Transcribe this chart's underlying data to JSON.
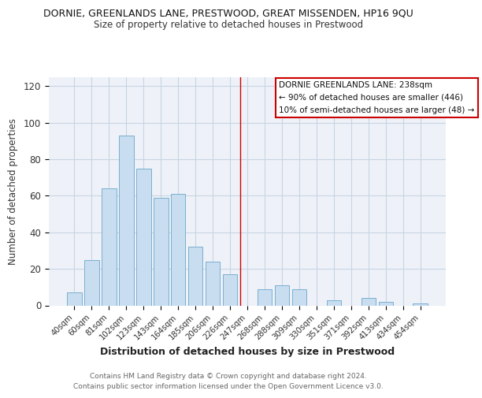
{
  "title": "DORNIE, GREENLANDS LANE, PRESTWOOD, GREAT MISSENDEN, HP16 9QU",
  "subtitle": "Size of property relative to detached houses in Prestwood",
  "xlabel": "Distribution of detached houses by size in Prestwood",
  "ylabel": "Number of detached properties",
  "bar_labels": [
    "40sqm",
    "60sqm",
    "81sqm",
    "102sqm",
    "123sqm",
    "143sqm",
    "164sqm",
    "185sqm",
    "206sqm",
    "226sqm",
    "247sqm",
    "268sqm",
    "288sqm",
    "309sqm",
    "330sqm",
    "351sqm",
    "371sqm",
    "392sqm",
    "413sqm",
    "434sqm",
    "454sqm"
  ],
  "bar_values": [
    7,
    25,
    64,
    93,
    75,
    59,
    61,
    32,
    24,
    17,
    0,
    9,
    11,
    9,
    0,
    3,
    0,
    4,
    2,
    0,
    1
  ],
  "bar_color": "#c8ddf0",
  "bar_edge_color": "#7aafcf",
  "annotation_box_text": "DORNIE GREENLANDS LANE: 238sqm\n← 90% of detached houses are smaller (446)\n10% of semi-detached houses are larger (48) →",
  "vline_color": "#cc0000",
  "box_edge_color": "#cc0000",
  "ylim": [
    0,
    125
  ],
  "yticks": [
    0,
    20,
    40,
    60,
    80,
    100,
    120
  ],
  "footer_line1": "Contains HM Land Registry data © Crown copyright and database right 2024.",
  "footer_line2": "Contains public sector information licensed under the Open Government Licence v3.0.",
  "background_color": "#ffffff",
  "plot_bg_color": "#eef2f8",
  "grid_color": "#c8d4e4"
}
